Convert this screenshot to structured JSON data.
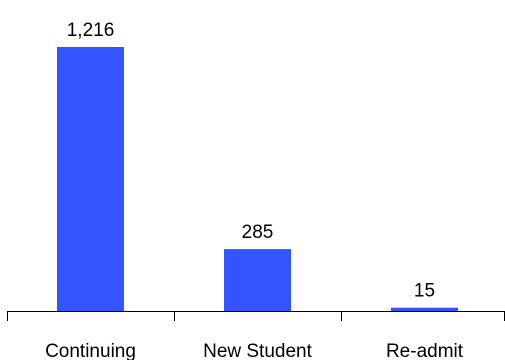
{
  "chart_data": {
    "type": "bar",
    "title": "",
    "xlabel": "",
    "ylabel": "",
    "categories": [
      "Continuing",
      "New Student",
      "Re-admit"
    ],
    "values": [
      1216,
      285,
      15
    ],
    "data_labels": [
      "1,216",
      "285",
      "15"
    ],
    "ylim": [
      0,
      1216
    ],
    "grid": false,
    "legend": "none",
    "bar_color": "#3355FF"
  }
}
